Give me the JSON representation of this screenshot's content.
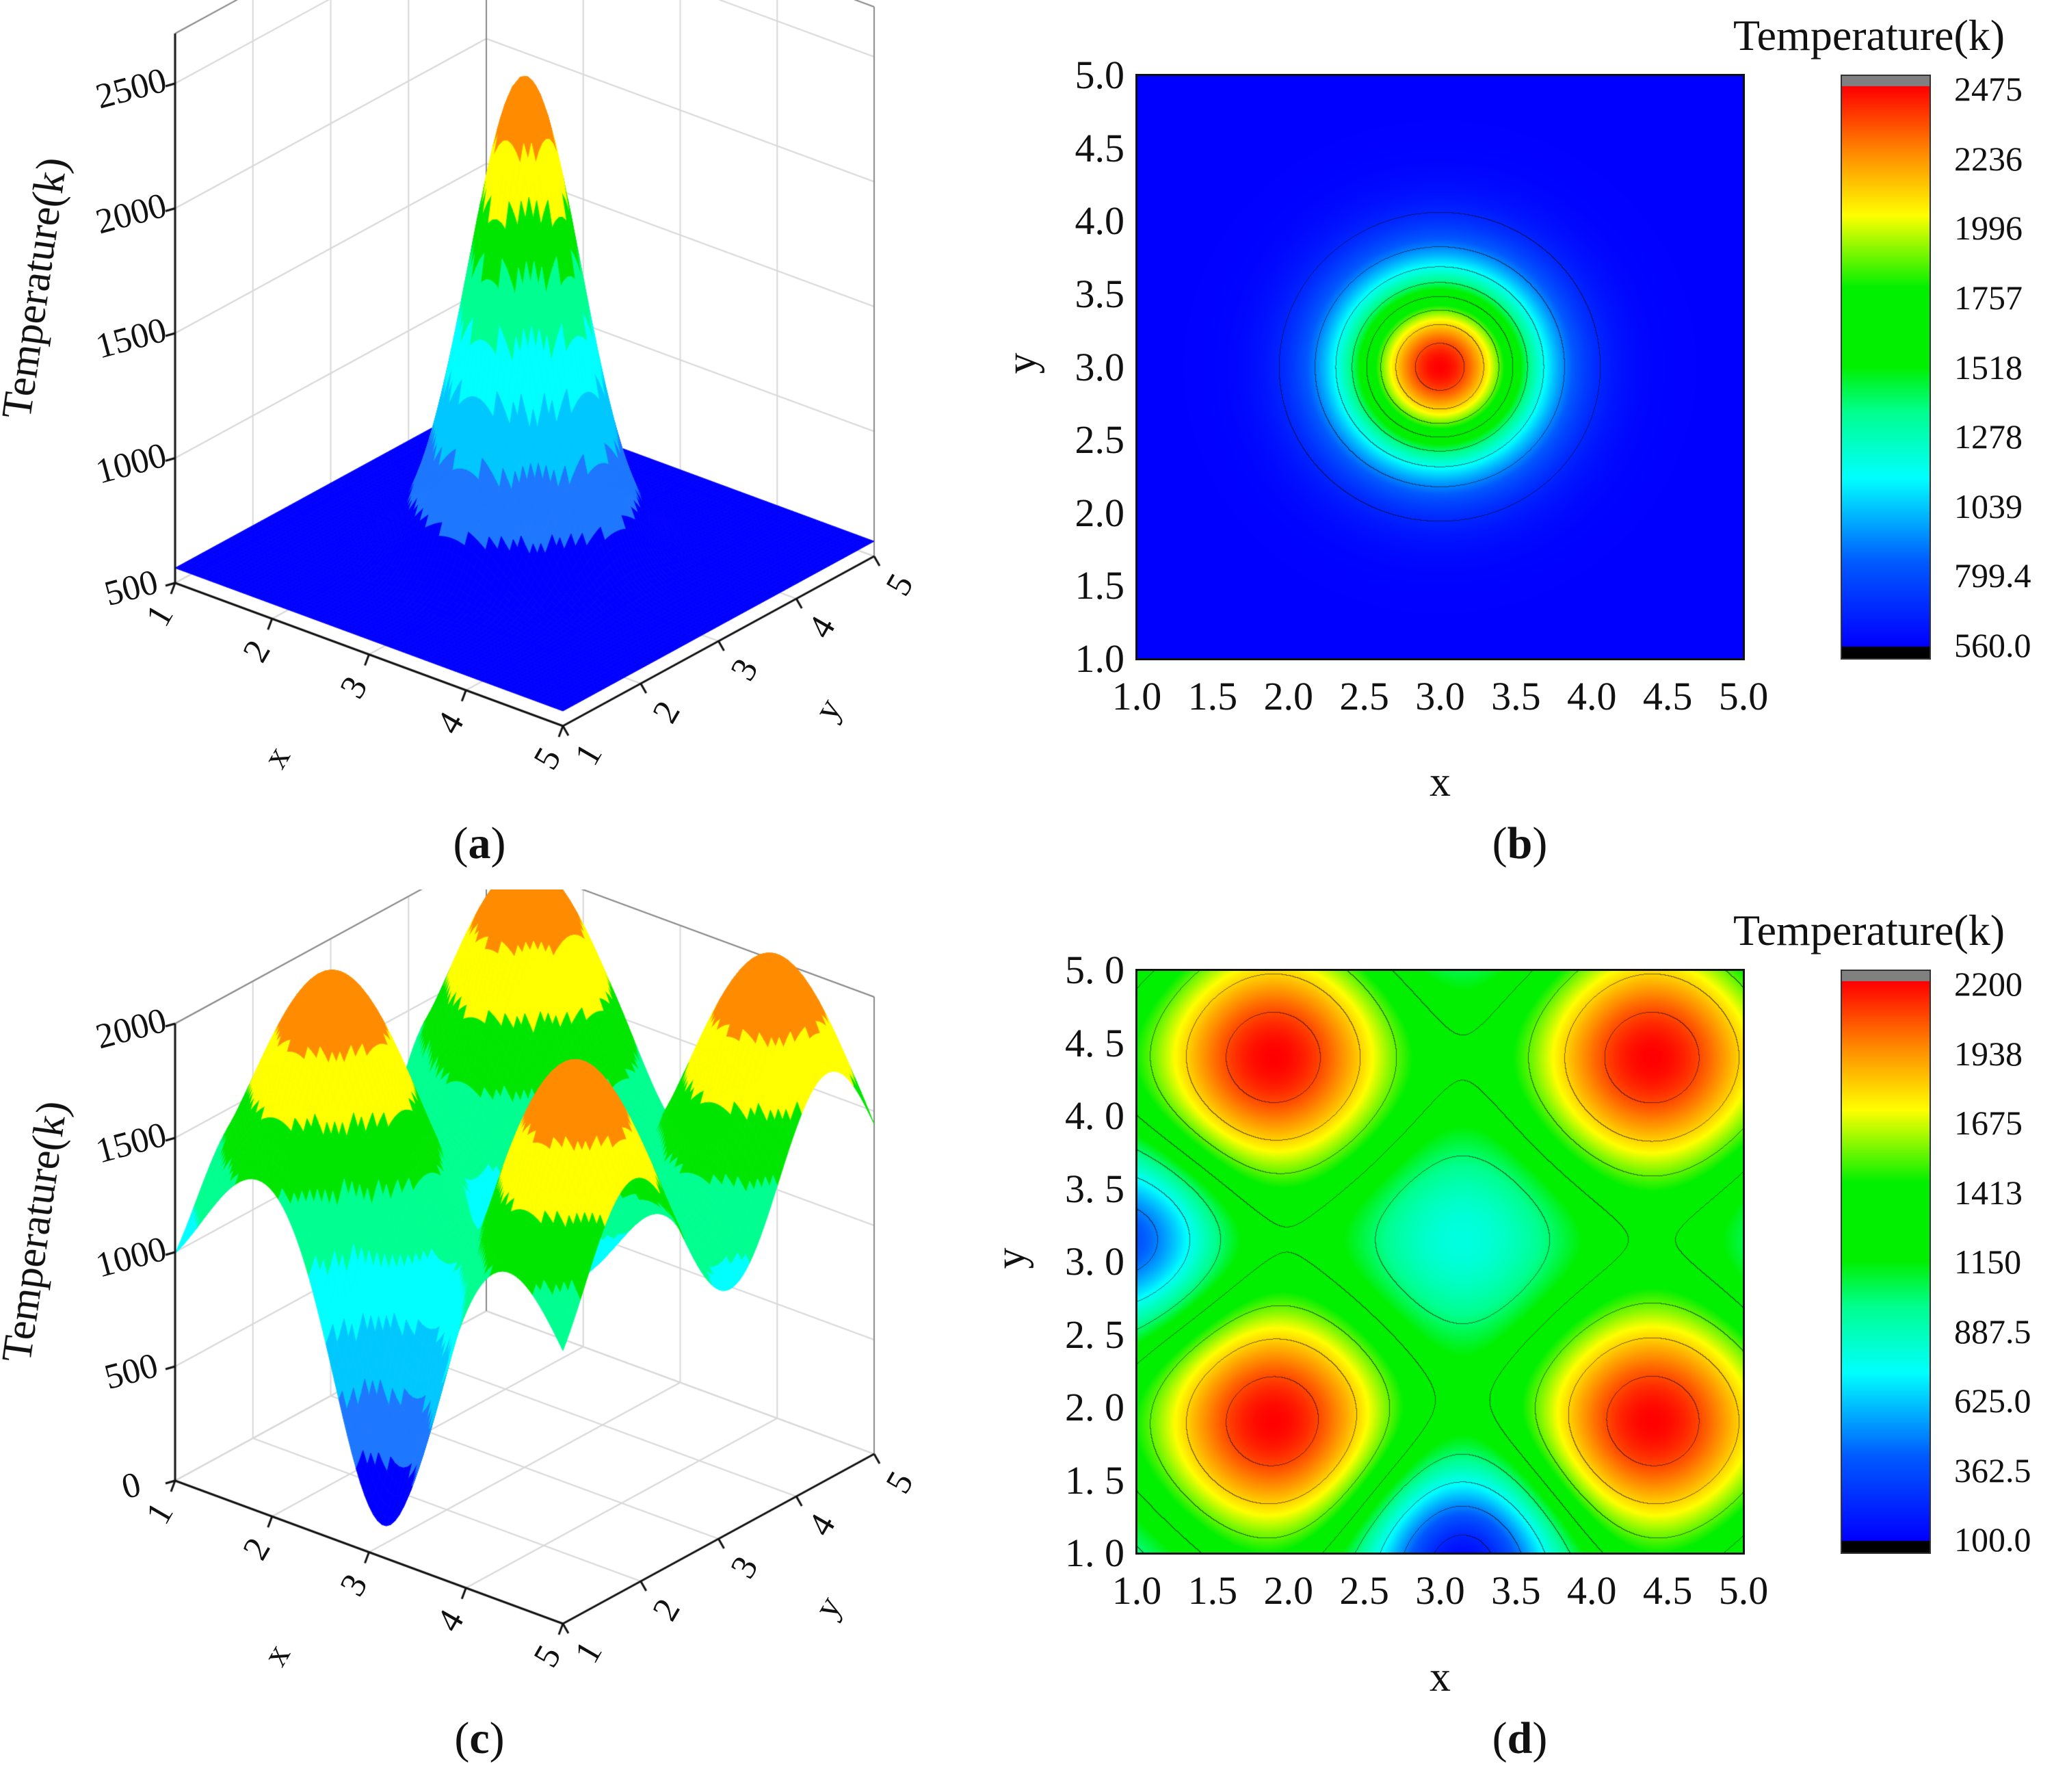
{
  "captions": {
    "a": "a",
    "b": "b",
    "c": "c",
    "d": "d"
  },
  "chart_data": [
    {
      "panel": "a",
      "type": "surface3d",
      "zlabel": "Temperature(k)",
      "xlabel": "x",
      "ylabel": "y",
      "xticks": [
        "1",
        "2",
        "3",
        "4",
        "5"
      ],
      "yticks": [
        "1",
        "2",
        "3",
        "4",
        "5"
      ],
      "zticks": [
        "500",
        "1000",
        "1500",
        "2000",
        "2500"
      ],
      "xlim": [
        1,
        5
      ],
      "ylim": [
        1,
        5
      ],
      "zlim": [
        500,
        2500
      ],
      "model": {
        "kind": "gaussian",
        "base": 560,
        "peak": 2475,
        "center": [
          3.0,
          3.0
        ],
        "sigma": 0.45
      },
      "bands": [
        560,
        799.4,
        1039,
        1278,
        1518,
        1757,
        1996,
        2236,
        2475
      ]
    },
    {
      "panel": "b",
      "type": "heatmap",
      "xlabel": "x",
      "ylabel": "y",
      "xticks": [
        "1.0",
        "1.5",
        "2.0",
        "2.5",
        "3.0",
        "3.5",
        "4.0",
        "4.5",
        "5.0"
      ],
      "yticks": [
        "1.0",
        "1.5",
        "2.0",
        "2.5",
        "3.0",
        "3.5",
        "4.0",
        "4.5",
        "5.0"
      ],
      "xlim": [
        1,
        5
      ],
      "ylim": [
        1,
        5
      ],
      "colorbar": {
        "title": "Temperature(k)",
        "ticks": [
          "2475",
          "2236",
          "1996",
          "1757",
          "1518",
          "1278",
          "1039",
          "799.4",
          "560.0"
        ],
        "range": [
          560,
          2475
        ]
      },
      "model": {
        "kind": "gaussian",
        "base": 560,
        "peak": 2475,
        "center": [
          3.0,
          3.0
        ],
        "sigma": 0.45
      }
    },
    {
      "panel": "c",
      "type": "surface3d",
      "zlabel": "Temperature(k)",
      "xlabel": "x",
      "ylabel": "y",
      "xticks": [
        "1",
        "2",
        "3",
        "4",
        "5"
      ],
      "yticks": [
        "1",
        "2",
        "3",
        "4",
        "5"
      ],
      "zticks": [
        "0",
        "500",
        "1000",
        "1500",
        "2000"
      ],
      "xlim": [
        1,
        5
      ],
      "ylim": [
        1,
        5
      ],
      "zlim": [
        0,
        2200
      ],
      "model": {
        "kind": "periodic",
        "peaks": [
          [
            1.9,
            1.9
          ],
          [
            1.9,
            4.4
          ],
          [
            4.4,
            1.9
          ],
          [
            4.4,
            4.4
          ]
        ],
        "peak_value": 2200,
        "center_value": 800,
        "saddle_value": 1300,
        "period": 2.5,
        "dips": [
          {
            "at": [
              3.15,
              1.0
            ],
            "depth": 750,
            "sigma": 0.45
          },
          {
            "at": [
              1.0,
              3.15
            ],
            "depth": 500,
            "sigma": 0.4
          }
        ]
      },
      "bands": [
        100,
        362.5,
        625,
        887.5,
        1150,
        1413,
        1675,
        1938,
        2200
      ]
    },
    {
      "panel": "d",
      "type": "heatmap",
      "xlabel": "x",
      "ylabel": "y",
      "xticks": [
        "1.0",
        "1.5",
        "2.0",
        "2.5",
        "3.0",
        "3.5",
        "4.0",
        "4.5",
        "5.0"
      ],
      "yticks": [
        "1. 0",
        "1. 5",
        "2. 0",
        "2. 5",
        "3. 0",
        "3. 5",
        "4. 0",
        "4. 5",
        "5. 0"
      ],
      "xlim": [
        1,
        5
      ],
      "ylim": [
        1,
        5
      ],
      "colorbar": {
        "title": "Temperature(k)",
        "ticks": [
          "2200",
          "1938",
          "1675",
          "1413",
          "1150",
          "887.5",
          "625.0",
          "362.5",
          "100.0"
        ],
        "range": [
          100,
          2200
        ]
      },
      "model": {
        "kind": "periodic",
        "peaks": [
          [
            1.9,
            1.9
          ],
          [
            1.9,
            4.4
          ],
          [
            4.4,
            1.9
          ],
          [
            4.4,
            4.4
          ]
        ],
        "peak_value": 2200,
        "center_value": 800,
        "saddle_value": 1300,
        "period": 2.5,
        "dips": [
          {
            "at": [
              3.15,
              1.0
            ],
            "depth": 750,
            "sigma": 0.45
          },
          {
            "at": [
              1.0,
              3.15
            ],
            "depth": 500,
            "sigma": 0.4
          }
        ]
      }
    }
  ]
}
